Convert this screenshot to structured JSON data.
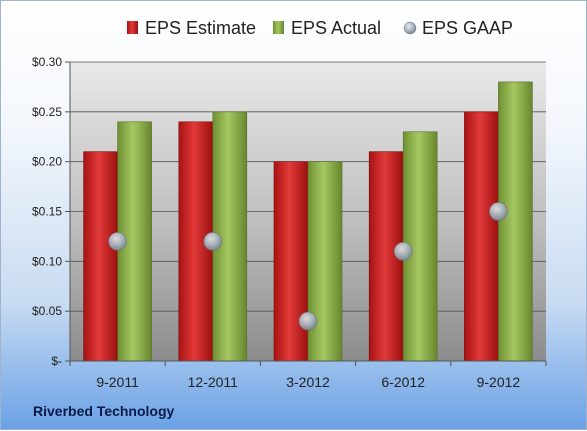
{
  "company": "Riverbed Technology",
  "colors": {
    "estimate": "#cc1f1f",
    "actual": "#8db34a",
    "gaap": "#a9b4bf"
  },
  "chart_data": {
    "type": "bar",
    "title": "",
    "xlabel": "",
    "ylabel": "",
    "categories": [
      "9-2011",
      "12-2011",
      "3-2012",
      "6-2012",
      "9-2012"
    ],
    "series": [
      {
        "name": "EPS Estimate",
        "kind": "bar",
        "values": [
          0.21,
          0.24,
          0.2,
          0.21,
          0.25
        ]
      },
      {
        "name": "EPS Actual",
        "kind": "bar",
        "values": [
          0.24,
          0.25,
          0.2,
          0.23,
          0.28
        ]
      },
      {
        "name": "EPS GAAP",
        "kind": "marker",
        "values": [
          0.12,
          0.12,
          0.04,
          0.11,
          0.15
        ]
      }
    ],
    "ylim": [
      0,
      0.3
    ],
    "yticks": [
      0,
      0.05,
      0.1,
      0.15,
      0.2,
      0.25,
      0.3
    ],
    "ytick_labels": [
      "$-",
      "$0.05",
      "$0.10",
      "$0.15",
      "$0.20",
      "$0.25",
      "$0.30"
    ],
    "grid": true,
    "legend_position": "top"
  }
}
